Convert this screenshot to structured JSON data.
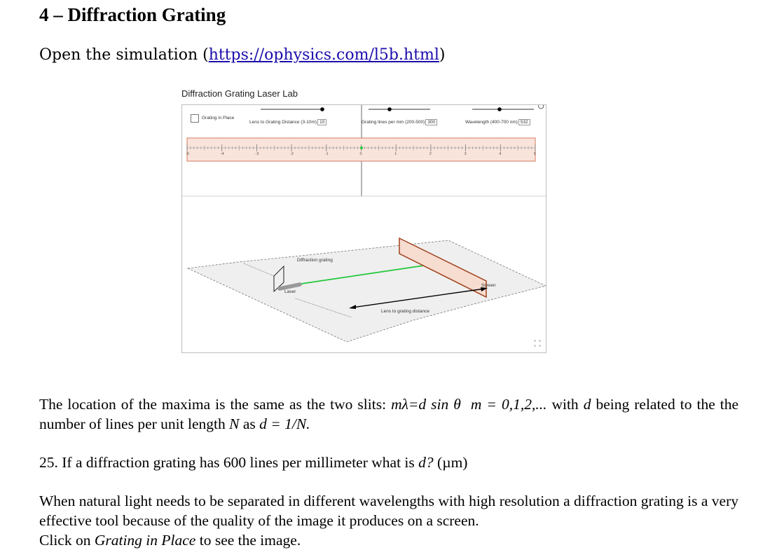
{
  "heading": "4 – Diffraction Grating",
  "intro": {
    "prefix": "Open the simulation (",
    "link": "https://ophysics.com/l5b.html",
    "suffix": ")"
  },
  "simulation": {
    "title": "Diffraction Grating Laser Lab",
    "grating_in_place_label": "Grating in Place",
    "lens_distance_label": "Lens to Grating Distance (3-10m)",
    "lens_distance_value": "10",
    "lines_per_mm_label": "Grating lines per mm (200-500)",
    "lines_per_mm_value": "300",
    "wavelength_label": "Wavelength (400-700 nm)",
    "wavelength_value": "532",
    "ruler_ticks": [
      "-5",
      "-4",
      "-3",
      "-2",
      "-1",
      "0",
      "1",
      "2",
      "3",
      "4",
      "5"
    ],
    "label_diffraction_grating": "Diffraction grating",
    "label_laser": "Laser",
    "label_screen": "Screen",
    "label_lens_distance": "Lens to grating distance",
    "colors": {
      "laser_beam": "#22c83c",
      "screen": "#a0421e",
      "ruler_fill": "#f9e4dc"
    }
  },
  "paragraph1": {
    "t1": "The location of the maxima is the same as the two slits: ",
    "formula": "mλ=d sin θ",
    "t2": "  ",
    "m_values": "m = 0,1,2,...",
    "t3": " with ",
    "d": "d",
    "t4": " being related to the the number of lines per unit length ",
    "N": "N",
    "t5": " as ",
    "relation": "d = 1/N."
  },
  "question": {
    "t1": "25. If a diffraction grating has 600 lines per millimeter what is ",
    "var": "d?",
    "t2": " (µm)"
  },
  "paragraph2": {
    "t1": "When natural light needs to be separated in different wavelengths with high resolution a diffraction grating is a very effective tool because of the quality of the image it produces on a screen.",
    "t2": "Click on ",
    "emph": "Grating in Place",
    "t3": " to see the image."
  }
}
